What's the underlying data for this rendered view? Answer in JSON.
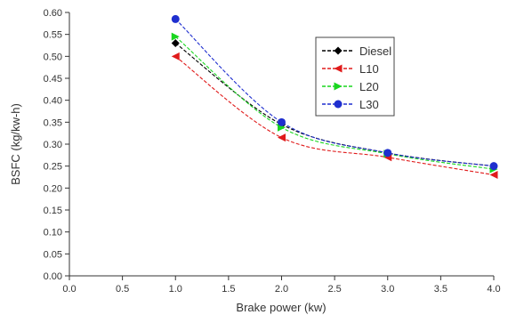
{
  "chart_data": {
    "type": "line",
    "title": "",
    "xlabel": "Brake power (kw)",
    "ylabel": "BSFC (kg/kw-h)",
    "xlim": [
      0.0,
      4.0
    ],
    "ylim": [
      0.0,
      0.6
    ],
    "x_ticks": [
      "0.0",
      "0.5",
      "1.0",
      "1.5",
      "2.0",
      "2.5",
      "3.0",
      "3.5",
      "4.0"
    ],
    "y_ticks": [
      "0.00",
      "0.05",
      "0.10",
      "0.15",
      "0.20",
      "0.25",
      "0.30",
      "0.35",
      "0.40",
      "0.45",
      "0.50",
      "0.55",
      "0.60"
    ],
    "grid": false,
    "legend_position": "top-right",
    "x": [
      1.0,
      2.0,
      3.0,
      4.0
    ],
    "series": [
      {
        "name": "Diesel",
        "values": [
          0.53,
          0.345,
          0.28,
          0.25
        ],
        "color": "#000000",
        "marker": "diamond"
      },
      {
        "name": "L10",
        "values": [
          0.5,
          0.315,
          0.27,
          0.23
        ],
        "color": "#e01b1b",
        "marker": "triangle-left"
      },
      {
        "name": "L20",
        "values": [
          0.545,
          0.338,
          0.278,
          0.243
        ],
        "color": "#19d61f",
        "marker": "triangle-right"
      },
      {
        "name": "L30",
        "values": [
          0.585,
          0.35,
          0.28,
          0.25
        ],
        "color": "#1f2fcf",
        "marker": "circle"
      }
    ]
  }
}
